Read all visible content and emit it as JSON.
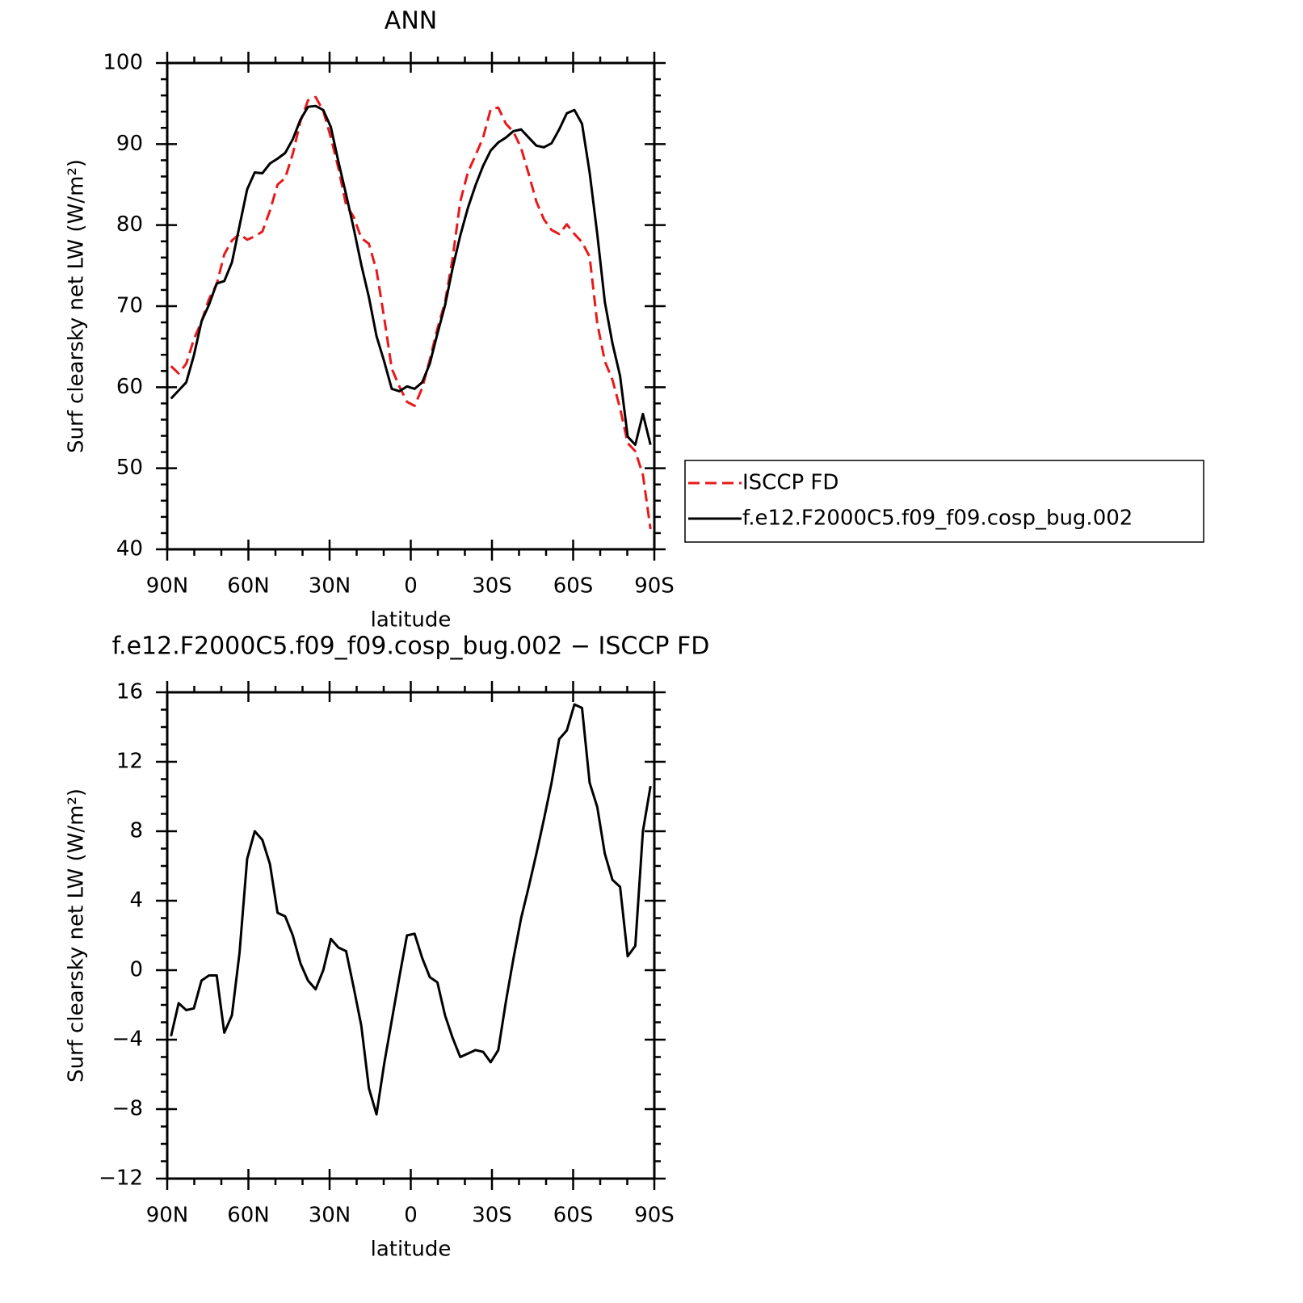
{
  "chart_data": [
    {
      "type": "line",
      "title": "ANN",
      "xlabel": "latitude",
      "ylabel": "Surf clearsky net LW (W/m²)",
      "x": [
        88.59,
        85.78,
        82.97,
        80.16,
        77.34,
        74.53,
        71.72,
        68.91,
        66.09,
        63.28,
        60.47,
        57.66,
        54.84,
        52.03,
        49.22,
        46.41,
        43.59,
        40.78,
        37.97,
        35.16,
        32.34,
        29.53,
        26.72,
        23.91,
        21.09,
        18.28,
        15.47,
        12.66,
        9.84,
        7.03,
        4.22,
        1.41,
        -1.41,
        -4.22,
        -7.03,
        -9.84,
        -12.66,
        -15.47,
        -18.28,
        -21.09,
        -23.91,
        -26.72,
        -29.53,
        -32.34,
        -35.16,
        -37.97,
        -40.78,
        -43.59,
        -46.41,
        -49.22,
        -52.03,
        -54.84,
        -57.66,
        -60.47,
        -63.28,
        -66.09,
        -68.91,
        -71.72,
        -74.53,
        -77.34,
        -80.16,
        -82.97,
        -85.78,
        -88.59
      ],
      "series": [
        {
          "name": "ISCCP FD",
          "color": "#e8191b",
          "style": "dashed",
          "values": [
            62.6,
            61.7,
            62.9,
            65.9,
            68.1,
            70.9,
            72.7,
            76.4,
            78.1,
            78.9,
            78.2,
            78.6,
            79.2,
            81.8,
            85.0,
            85.8,
            88.8,
            92.8,
            95.4,
            95.8,
            94.1,
            90.8,
            87.0,
            82.5,
            81.0,
            78.4,
            77.7,
            74.4,
            68.6,
            62.3,
            60.1,
            58.2,
            57.7,
            59.9,
            63.4,
            67.2,
            70.5,
            75.9,
            82.9,
            86.5,
            88.6,
            90.8,
            94.3,
            94.5,
            92.5,
            91.5,
            89.5,
            86.3,
            82.9,
            80.7,
            79.4,
            78.9,
            80.1,
            78.9,
            77.9,
            76.1,
            67.9,
            63.2,
            60.9,
            57.4,
            53.1,
            52.1,
            49.2,
            42.5
          ]
        },
        {
          "name": "f.e12.F2000C5.f09_f09.cosp_bug.002",
          "color": "#000000",
          "style": "solid",
          "values": [
            58.6,
            59.6,
            60.6,
            63.9,
            68.1,
            70.2,
            72.8,
            73.1,
            75.4,
            79.9,
            84.4,
            86.5,
            86.4,
            87.6,
            88.2,
            88.9,
            90.6,
            93.0,
            94.6,
            94.7,
            94.2,
            92.1,
            87.8,
            83.8,
            79.6,
            75.1,
            71.1,
            66.3,
            63.2,
            59.8,
            59.5,
            60.1,
            59.8,
            60.6,
            62.9,
            66.6,
            70.1,
            74.7,
            78.7,
            82.1,
            84.9,
            87.3,
            89.2,
            90.2,
            90.8,
            91.6,
            91.8,
            90.8,
            89.8,
            89.6,
            90.1,
            91.8,
            93.8,
            94.2,
            92.5,
            86.5,
            78.9,
            70.5,
            65.4,
            61.4,
            53.9,
            52.9,
            56.7,
            52.9
          ]
        }
      ],
      "xlim": [
        90,
        -90
      ],
      "xticks": [
        {
          "value": 90,
          "label": "90N"
        },
        {
          "value": 60,
          "label": "60N"
        },
        {
          "value": 30,
          "label": "30N"
        },
        0,
        {
          "value": -30,
          "label": "30S"
        },
        {
          "value": -60,
          "label": "60S"
        },
        {
          "value": -90,
          "label": "90S"
        }
      ],
      "ylim": [
        40,
        100
      ],
      "yticks": [
        40,
        50,
        60,
        70,
        80,
        90,
        100
      ],
      "legend": "right",
      "grid": false
    },
    {
      "type": "line",
      "title": "f.e12.F2000C5.f09_f09.cosp_bug.002 − ISCCP FD",
      "xlabel": "latitude",
      "ylabel": "Surf clearsky net LW (W/m²)",
      "x": [
        88.59,
        85.78,
        82.97,
        80.16,
        77.34,
        74.53,
        71.72,
        68.91,
        66.09,
        63.28,
        60.47,
        57.66,
        54.84,
        52.03,
        49.22,
        46.41,
        43.59,
        40.78,
        37.97,
        35.16,
        32.34,
        29.53,
        26.72,
        23.91,
        21.09,
        18.28,
        15.47,
        12.66,
        9.84,
        7.03,
        4.22,
        1.41,
        -1.41,
        -4.22,
        -7.03,
        -9.84,
        -12.66,
        -15.47,
        -18.28,
        -21.09,
        -23.91,
        -26.72,
        -29.53,
        -32.34,
        -35.16,
        -37.97,
        -40.78,
        -43.59,
        -46.41,
        -49.22,
        -52.03,
        -54.84,
        -57.66,
        -60.47,
        -63.28,
        -66.09,
        -68.91,
        -71.72,
        -74.53,
        -77.34,
        -80.16,
        -82.97,
        -85.78,
        -88.59
      ],
      "series": [
        {
          "color": "#000000",
          "style": "solid",
          "values": [
            -3.8,
            -1.9,
            -2.3,
            -2.2,
            -0.6,
            -0.3,
            -0.3,
            -3.6,
            -2.6,
            1.0,
            6.4,
            8.0,
            7.5,
            6.1,
            3.3,
            3.1,
            2.0,
            0.4,
            -0.6,
            -1.1,
            0.0,
            1.8,
            1.3,
            1.1,
            -1.0,
            -3.2,
            -6.8,
            -8.3,
            -5.4,
            -2.9,
            -0.4,
            2.0,
            2.1,
            0.7,
            -0.4,
            -0.7,
            -2.6,
            -3.9,
            -5.0,
            -4.8,
            -4.6,
            -4.7,
            -5.3,
            -4.6,
            -1.8,
            0.7,
            3.0,
            4.8,
            6.7,
            8.7,
            10.8,
            13.3,
            13.8,
            15.3,
            15.1,
            10.8,
            9.4,
            6.7,
            5.2,
            4.8,
            0.8,
            1.4,
            8.0,
            10.6
          ]
        }
      ],
      "xlim": [
        90,
        -90
      ],
      "xticks": [
        {
          "value": 90,
          "label": "90N"
        },
        {
          "value": 60,
          "label": "60N"
        },
        {
          "value": 30,
          "label": "30N"
        },
        0,
        {
          "value": -30,
          "label": "30S"
        },
        {
          "value": -60,
          "label": "60S"
        },
        {
          "value": -90,
          "label": "90S"
        }
      ],
      "ylim": [
        -12,
        16
      ],
      "yticks": [
        {
          "value": -12,
          "label": "−12"
        },
        {
          "value": -8,
          "label": "−8"
        },
        {
          "value": -4,
          "label": "−4"
        },
        0,
        4,
        8,
        12,
        16
      ],
      "grid": false
    }
  ]
}
